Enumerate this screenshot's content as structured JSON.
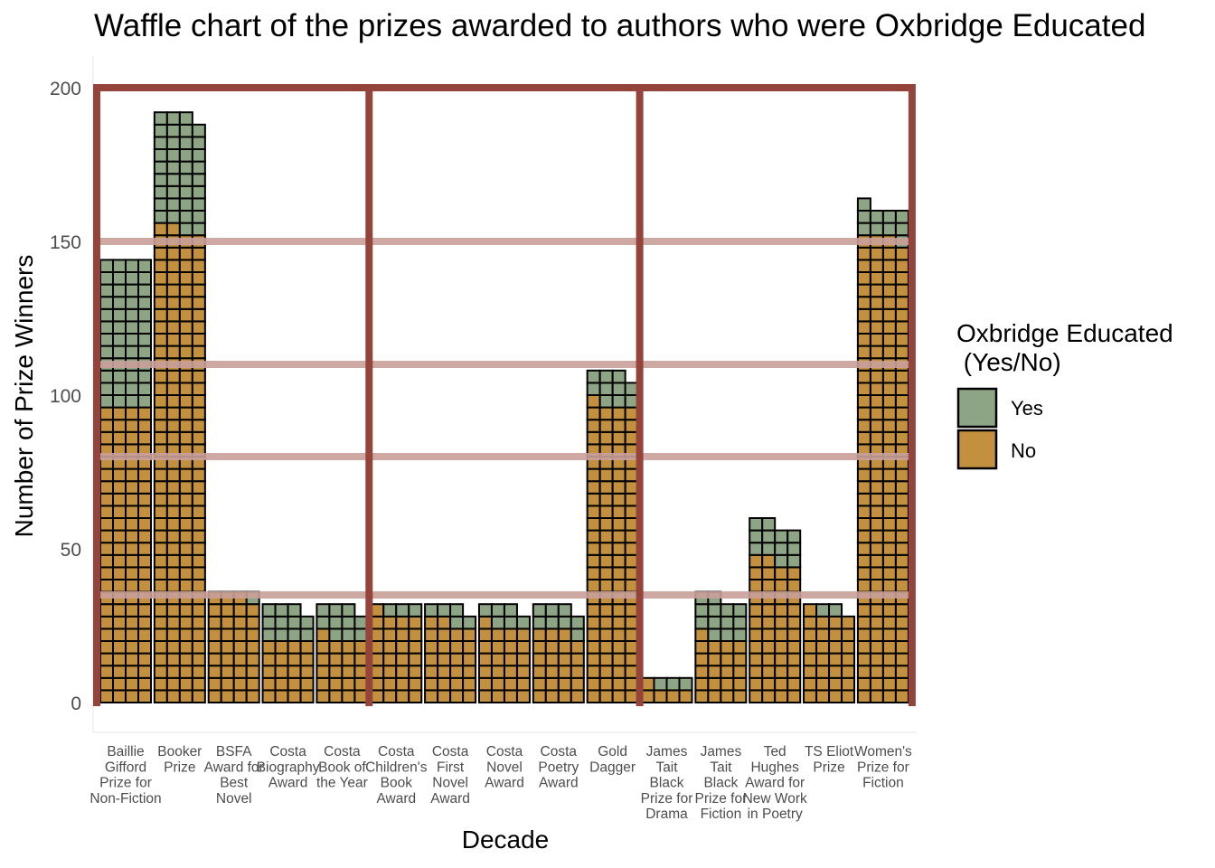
{
  "colors": {
    "yes": "#8da485",
    "no": "#c2903e",
    "cell_border": "#000000",
    "frame": "#94443a",
    "hline": "#c9a09a",
    "axis_line": "#dddddd"
  },
  "chart_data": {
    "type": "bar",
    "subtype": "waffle",
    "title": "Waffle chart of the prizes awarded to authors who were Oxbridge Educated",
    "xlabel": "Decade",
    "ylabel": "Number of Prize Winners",
    "ylim": [
      0,
      210
    ],
    "yticks": [
      0,
      50,
      100,
      150,
      200
    ],
    "grid": false,
    "legend": {
      "title_lines": [
        "Oxbridge Educated",
        " (Yes/No)"
      ],
      "placement": "right",
      "entries": [
        {
          "key": "yes",
          "label": "Yes"
        },
        {
          "key": "no",
          "label": "No"
        }
      ]
    },
    "categories": [
      {
        "lines": [
          "Baillie",
          "Gifford",
          "Prize for",
          "Non-Fiction"
        ],
        "yes": 48,
        "no": 96
      },
      {
        "lines": [
          "Booker",
          "Prize"
        ],
        "yes": 37,
        "no": 154
      },
      {
        "lines": [
          "BSFA",
          "Award for",
          "Best",
          "Novel"
        ],
        "yes": 1,
        "no": 35
      },
      {
        "lines": [
          "Costa",
          "Biography",
          "Award"
        ],
        "yes": 11,
        "no": 20
      },
      {
        "lines": [
          "Costa",
          "Book of",
          "the Year"
        ],
        "yes": 10,
        "no": 21
      },
      {
        "lines": [
          "Costa",
          "Children's",
          "Book",
          "Award"
        ],
        "yes": 3,
        "no": 29
      },
      {
        "lines": [
          "Costa",
          "First",
          "Novel",
          "Award"
        ],
        "yes": 5,
        "no": 26
      },
      {
        "lines": [
          "Costa",
          "Novel",
          "Award"
        ],
        "yes": 6,
        "no": 25
      },
      {
        "lines": [
          "Costa",
          "Poetry",
          "Award"
        ],
        "yes": 8,
        "no": 23
      },
      {
        "lines": [
          "Gold",
          "Dagger"
        ],
        "yes": 10,
        "no": 97
      },
      {
        "lines": [
          "James",
          "Tait",
          "Black",
          "Prize for",
          "Drama"
        ],
        "yes": 3,
        "no": 5
      },
      {
        "lines": [
          "James",
          "Tait",
          "Black",
          "Prize for",
          "Fiction"
        ],
        "yes": 13,
        "no": 21
      },
      {
        "lines": [
          "Ted",
          "Hughes",
          "Award for",
          "New Work",
          "in Poetry"
        ],
        "yes": 12,
        "no": 46
      },
      {
        "lines": [
          "TS Eliot",
          "Prize"
        ],
        "yes": 2,
        "no": 29
      },
      {
        "lines": [
          "Women's",
          "Prize for",
          "Fiction"
        ],
        "yes": 10,
        "no": 151
      }
    ],
    "hlines": [
      150,
      110,
      80,
      35
    ],
    "frame_groups": [
      [
        1,
        5
      ],
      [
        6,
        10
      ],
      [
        11,
        15
      ]
    ],
    "frame_top": 200,
    "cells_per_row": 4
  }
}
